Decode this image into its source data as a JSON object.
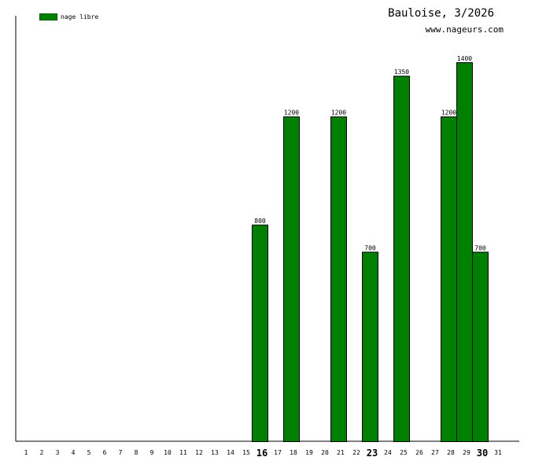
{
  "title": "Bauloise, 3/2026",
  "subtitle": "www.nageurs.com",
  "colors": {
    "bar": "#008000",
    "bar_stroke": "#000000",
    "axis": "#000000"
  },
  "chart_data": {
    "type": "bar",
    "categories": [
      "1",
      "2",
      "3",
      "4",
      "5",
      "6",
      "7",
      "8",
      "9",
      "10",
      "11",
      "12",
      "13",
      "14",
      "15",
      "16",
      "17",
      "18",
      "19",
      "20",
      "21",
      "22",
      "23",
      "24",
      "25",
      "26",
      "27",
      "28",
      "29",
      "30",
      "31"
    ],
    "emphasized_categories": [
      "16",
      "23",
      "30"
    ],
    "series": [
      {
        "name": "nage libre",
        "values": [
          0,
          0,
          0,
          0,
          0,
          0,
          0,
          0,
          0,
          0,
          0,
          0,
          0,
          0,
          0,
          800,
          0,
          1200,
          0,
          0,
          1200,
          0,
          700,
          0,
          1350,
          0,
          0,
          1200,
          1400,
          700,
          0
        ]
      }
    ],
    "ylim": [
      0,
      1400
    ],
    "grid": false,
    "legend": "top-left"
  }
}
